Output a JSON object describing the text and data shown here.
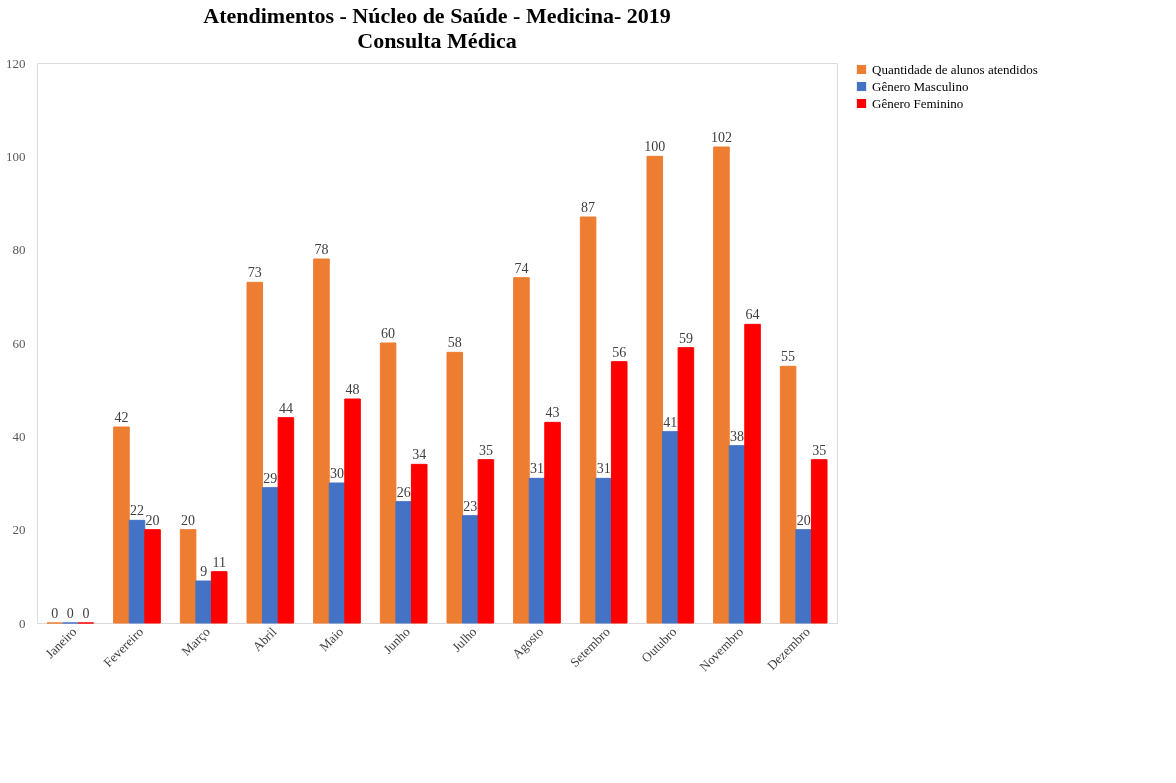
{
  "chart_data": {
    "type": "bar",
    "title": "Atendimentos - Núcleo de Saúde - Medicina- 2019",
    "subtitle": "Consulta Médica",
    "categories": [
      "Janeiro",
      "Fevereiro",
      "Março",
      "Abril",
      "Maio",
      "Junho",
      "Julho",
      "Agosto",
      "Setembro",
      "Outubro",
      "Novembro",
      "Dezembro"
    ],
    "series": [
      {
        "name": "Quantidade de alunos atendidos",
        "color": "#ed7d31",
        "values": [
          0,
          42,
          20,
          73,
          78,
          60,
          58,
          74,
          87,
          100,
          102,
          55
        ]
      },
      {
        "name": "Gênero Masculino",
        "color": "#4472c4",
        "values": [
          0,
          22,
          9,
          29,
          30,
          26,
          23,
          31,
          31,
          41,
          38,
          20
        ]
      },
      {
        "name": "Gênero Feminino",
        "color": "#ff0000",
        "values": [
          0,
          20,
          11,
          44,
          48,
          34,
          35,
          43,
          56,
          59,
          64,
          35
        ]
      }
    ],
    "ylim": [
      0,
      120
    ],
    "yticks": [
      0,
      20,
      40,
      60,
      80,
      100,
      120
    ],
    "grid": false,
    "legend": "right",
    "data_labels": true
  }
}
